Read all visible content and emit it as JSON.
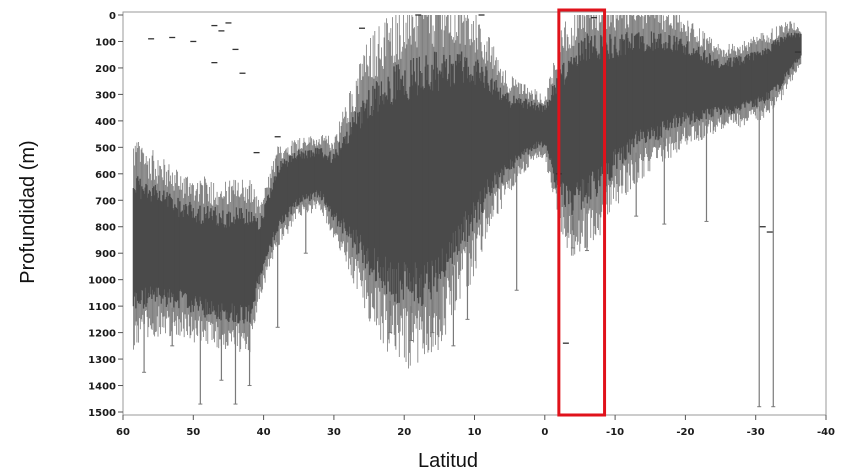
{
  "chart_data": {
    "type": "box",
    "xlabel": "Latitud",
    "ylabel": "Profundidad (m)",
    "xlim": [
      60,
      -40
    ],
    "ylim": [
      0,
      1500
    ],
    "y_inverted": true,
    "x_ticks": [
      "60",
      "50",
      "40",
      "30",
      "20",
      "10",
      "0",
      "-10",
      "-20",
      "-30",
      "-40"
    ],
    "x_tick_values": [
      60,
      50,
      40,
      30,
      20,
      10,
      0,
      -10,
      -20,
      -30,
      -40
    ],
    "y_ticks": [
      "0",
      "100",
      "200",
      "300",
      "400",
      "500",
      "600",
      "700",
      "800",
      "900",
      "1000",
      "1100",
      "1200",
      "1300",
      "1400",
      "1500"
    ],
    "y_tick_values": [
      0,
      100,
      200,
      300,
      400,
      500,
      600,
      700,
      800,
      900,
      1000,
      1100,
      1200,
      1300,
      1400,
      1500
    ],
    "grid": false,
    "box_color": "#4a4a4a",
    "whisker_color": "#7a7a7a",
    "highlight": {
      "lat_from": -2,
      "lat_to": -8.5,
      "color": "#e0121b"
    },
    "profile": {
      "lat": [
        58.5,
        55,
        52,
        48,
        45,
        42,
        40.5,
        38,
        35,
        32,
        30,
        27,
        25,
        22,
        20,
        17,
        15,
        12,
        10,
        8,
        5,
        2,
        0,
        -2,
        -4,
        -6,
        -8,
        -10,
        -13,
        -16,
        -19,
        -22,
        -25,
        -28,
        -31,
        -33,
        -35,
        -36.5
      ],
      "top": [
        590,
        640,
        690,
        720,
        730,
        720,
        770,
        560,
        510,
        500,
        520,
        360,
        260,
        200,
        160,
        130,
        120,
        130,
        150,
        200,
        300,
        320,
        340,
        200,
        120,
        70,
        60,
        70,
        60,
        60,
        80,
        120,
        170,
        150,
        120,
        90,
        60,
        70
      ],
      "bottom": [
        1130,
        1100,
        1110,
        1150,
        1160,
        1170,
        1010,
        820,
        720,
        690,
        780,
        900,
        990,
        1080,
        1100,
        1100,
        1050,
        900,
        820,
        700,
        600,
        520,
        500,
        700,
        760,
        720,
        680,
        600,
        520,
        480,
        430,
        410,
        380,
        370,
        340,
        300,
        220,
        160
      ]
    },
    "outliers": [
      {
        "lat": 56,
        "depth": 90
      },
      {
        "lat": 53,
        "depth": 85
      },
      {
        "lat": 50,
        "depth": 100
      },
      {
        "lat": 47,
        "depth": 40
      },
      {
        "lat": 45,
        "depth": 30
      },
      {
        "lat": 46,
        "depth": 60
      },
      {
        "lat": 44,
        "depth": 130
      },
      {
        "lat": 47,
        "depth": 180
      },
      {
        "lat": 43,
        "depth": 220
      },
      {
        "lat": 41,
        "depth": 520
      },
      {
        "lat": 38,
        "depth": 460
      },
      {
        "lat": 26,
        "depth": 50
      },
      {
        "lat": 9,
        "depth": 0
      },
      {
        "lat": 18,
        "depth": 0
      },
      {
        "lat": -7,
        "depth": 10
      },
      {
        "lat": -3,
        "depth": 1240
      },
      {
        "lat": -2,
        "depth": 600
      },
      {
        "lat": -31,
        "depth": 800
      },
      {
        "lat": -32,
        "depth": 820
      },
      {
        "lat": -36,
        "depth": 140
      }
    ],
    "whisker_extremes": [
      {
        "lat": 57,
        "depth": 1350
      },
      {
        "lat": 53,
        "depth": 1250
      },
      {
        "lat": 49,
        "depth": 1470
      },
      {
        "lat": 46,
        "depth": 1380
      },
      {
        "lat": 44,
        "depth": 1470
      },
      {
        "lat": 42,
        "depth": 1400
      },
      {
        "lat": 38,
        "depth": 1180
      },
      {
        "lat": 34,
        "depth": 900
      },
      {
        "lat": 22,
        "depth": 1200
      },
      {
        "lat": 19,
        "depth": 1230
      },
      {
        "lat": 16,
        "depth": 1200
      },
      {
        "lat": 13,
        "depth": 1250
      },
      {
        "lat": 11,
        "depth": 1150
      },
      {
        "lat": 4,
        "depth": 1040
      },
      {
        "lat": -4,
        "depth": 880
      },
      {
        "lat": -6,
        "depth": 890
      },
      {
        "lat": -13,
        "depth": 760
      },
      {
        "lat": -17,
        "depth": 790
      },
      {
        "lat": -23,
        "depth": 780
      },
      {
        "lat": -30.5,
        "depth": 1480
      },
      {
        "lat": -32.5,
        "depth": 1480
      }
    ]
  }
}
